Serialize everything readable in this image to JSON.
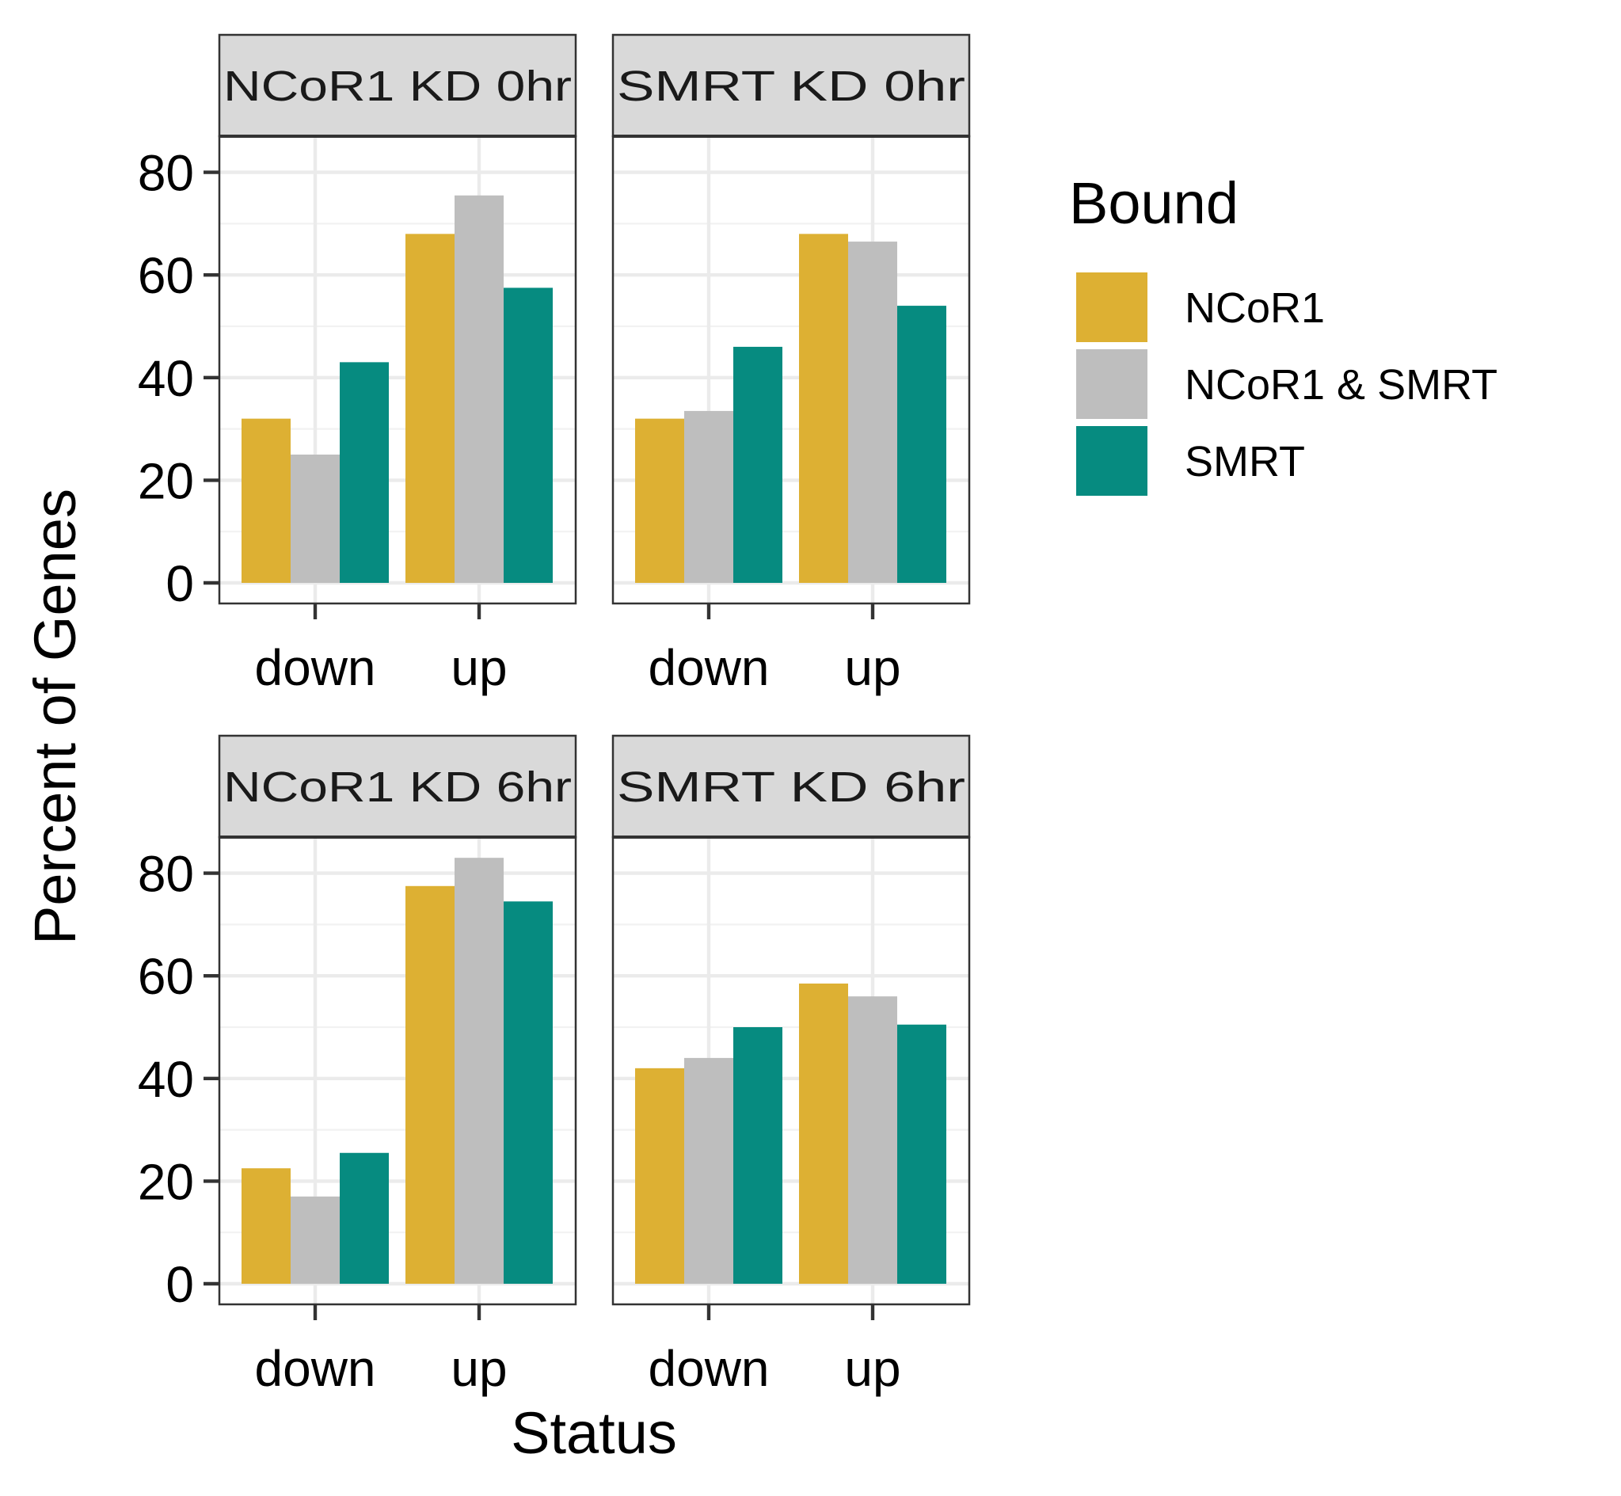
{
  "chart_data": {
    "type": "bar",
    "xlabel": "Status",
    "ylabel": "Percent of Genes",
    "ylim": [
      0,
      86
    ],
    "yticks": [
      0,
      20,
      40,
      60,
      80
    ],
    "categories": [
      "down",
      "up"
    ],
    "grid": true,
    "legend": {
      "title": "Bound",
      "placement": "right",
      "entries": [
        "NCoR1",
        "NCoR1 & SMRT",
        "SMRT"
      ]
    },
    "colors": {
      "NCoR1": "#DDB033",
      "NCoR1 & SMRT": "#BEBEBE",
      "SMRT": "#068B80"
    },
    "panels": [
      {
        "title": "NCoR1 KD 0hr",
        "series": [
          {
            "name": "NCoR1",
            "values": [
              32,
              68
            ]
          },
          {
            "name": "NCoR1 & SMRT",
            "values": [
              25,
              75.5
            ]
          },
          {
            "name": "SMRT",
            "values": [
              43,
              57.5
            ]
          }
        ]
      },
      {
        "title": "SMRT KD 0hr",
        "series": [
          {
            "name": "NCoR1",
            "values": [
              32,
              68
            ]
          },
          {
            "name": "NCoR1 & SMRT",
            "values": [
              33.5,
              66.5
            ]
          },
          {
            "name": "SMRT",
            "values": [
              46,
              54
            ]
          }
        ]
      },
      {
        "title": "NCoR1 KD 6hr",
        "series": [
          {
            "name": "NCoR1",
            "values": [
              22.5,
              77.5
            ]
          },
          {
            "name": "NCoR1 & SMRT",
            "values": [
              17,
              83
            ]
          },
          {
            "name": "SMRT",
            "values": [
              25.5,
              74.5
            ]
          }
        ]
      },
      {
        "title": "SMRT KD 6hr",
        "series": [
          {
            "name": "NCoR1",
            "values": [
              42,
              58.5
            ]
          },
          {
            "name": "NCoR1 & SMRT",
            "values": [
              44,
              56
            ]
          },
          {
            "name": "SMRT",
            "values": [
              50,
              50.5
            ]
          }
        ]
      }
    ]
  }
}
